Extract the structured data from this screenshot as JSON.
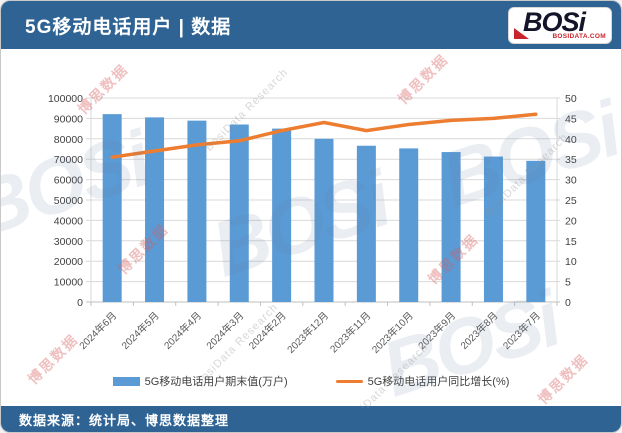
{
  "header": {
    "title": "5G移动电话用户 | 数据",
    "logo": {
      "text": "BOSi",
      "subtext": "BOSIDATA.COM"
    }
  },
  "footer": {
    "source": "数据来源：统计局、博思数据整理"
  },
  "watermark": {
    "cn": "博思数据",
    "en": "BosiData Research",
    "logo_text": "BOSi"
  },
  "chart_data": {
    "type": "bar",
    "subtype": "bar+line combo, dual y-axes",
    "categories": [
      "2024年6月",
      "2024年5月",
      "2024年4月",
      "2024年3月",
      "2024年2月",
      "2023年12月",
      "2023年11月",
      "2023年10月",
      "2023年9月",
      "2023年8月",
      "2023年7月"
    ],
    "series": [
      {
        "name": "5G移动电话用户期末值(万户)",
        "type": "bar",
        "axis": "left",
        "color": "#5b9bd5",
        "values": [
          92100,
          90500,
          88900,
          87000,
          85000,
          80000,
          76600,
          75300,
          73500,
          71300,
          69200
        ]
      },
      {
        "name": "5G移动电话用户同比增长(%)",
        "type": "line",
        "axis": "right",
        "color": "#ed7d31",
        "values": [
          35.5,
          37,
          38.5,
          39.5,
          42,
          44,
          42,
          43.5,
          44.5,
          45,
          46
        ]
      }
    ],
    "left_axis": {
      "min": 0,
      "max": 100000,
      "step": 10000
    },
    "right_axis": {
      "min": 0,
      "max": 50,
      "step": 5
    },
    "grid": true,
    "legend_position": "bottom",
    "title": ""
  }
}
